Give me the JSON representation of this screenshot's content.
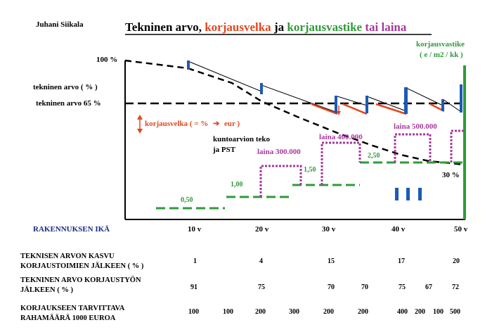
{
  "author": "Juhani Siikala",
  "title": {
    "part1": "Tekninen arvo, ",
    "part2": "korjausvelka",
    "part3": " ja ",
    "part4": "korjausvastike",
    "part5": " tai laina"
  },
  "legend_right": {
    "line1": "korjausvastike",
    "line2": "( e / m2 / kk )"
  },
  "labels": {
    "y_100": "100 %",
    "tech_value": "tekninen arvo ( % )",
    "tech_65": "tekninen arvo 65 %",
    "korjausvelka": "korjausvelka ( = %",
    "arrow": "➔",
    "eur": "eur )",
    "kuntoarvio_1": "kuntoarvion teko",
    "kuntoarvio_2": "ja PST",
    "laina_300": "laina 300.000",
    "laina_400": "laina  400.000",
    "laina_500": "laina 500.000",
    "pct_30": "30 %",
    "x_title": "RAKENNUKSEN IKÄ"
  },
  "vastike_labels": [
    "0,50",
    "1,00",
    "1,50",
    "2,50"
  ],
  "x_ticks": [
    "10 v",
    "20 v",
    "30 v",
    "40 v",
    "50 v"
  ],
  "table": {
    "row1": {
      "label1": "TEKNISEN ARVON KASVU",
      "label2": "KORJAUSTOIMIEN JÄLKEEN ( % )",
      "values": [
        "1",
        "4",
        "15",
        "17",
        "20"
      ]
    },
    "row2": {
      "label1": "TEKNINEN ARVO KORJAUSTYÖN",
      "label2": "JÄLKEEN ( % )",
      "values": [
        "91",
        "75",
        "70",
        "70",
        "75",
        "67",
        "72"
      ]
    },
    "row3": {
      "label1": "KORJAUKSEEN TARVITTAVA",
      "label2": "RAHAMÄÄRÄ 1000 EUROA",
      "values": [
        "100",
        "100",
        "200",
        "300",
        "200",
        "200",
        "400",
        "200",
        "100",
        "500"
      ]
    }
  },
  "colors": {
    "black": "#000000",
    "orange": "#e5461d",
    "green": "#2e9b38",
    "purple": "#a8399e",
    "blue": "#1d5ab5",
    "navy": "#1b2a7e"
  }
}
